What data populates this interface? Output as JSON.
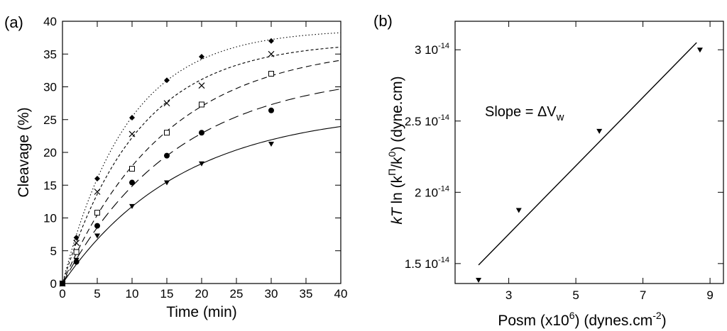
{
  "chart_data": [
    {
      "panel_label": "(a)",
      "type": "scatter",
      "xlabel": "Time (min)",
      "ylabel": "Cleavage (%)",
      "xlim": [
        0,
        40
      ],
      "ylim": [
        0,
        40
      ],
      "xticks": [
        "0",
        "5",
        "10",
        "15",
        "20",
        "25",
        "30",
        "35",
        "40"
      ],
      "yticks": [
        "0",
        "5",
        "10",
        "15",
        "20",
        "25",
        "30",
        "35",
        "40"
      ],
      "grid": false,
      "series": [
        {
          "marker": "diamond-filled",
          "curve_style": "dotted",
          "x": [
            0,
            2,
            5,
            10,
            15,
            20,
            30
          ],
          "y": [
            0,
            7.0,
            16.0,
            25.3,
            31.0,
            34.6,
            37.0
          ],
          "fit": [
            0,
            38.8
          ]
        },
        {
          "marker": "x-cross",
          "curve_style": "short-dash",
          "x": [
            0,
            2,
            5,
            10,
            15,
            20,
            30
          ],
          "y": [
            0,
            6.2,
            14.0,
            22.8,
            27.5,
            30.2,
            35.0
          ],
          "fit": [
            0,
            37.0
          ]
        },
        {
          "marker": "square-open",
          "curve_style": "medium-dash",
          "x": [
            0,
            2,
            5,
            10,
            15,
            20,
            30
          ],
          "y": [
            0,
            4.8,
            10.8,
            17.5,
            23.0,
            27.3,
            32.0
          ],
          "fit": [
            0,
            36.5
          ]
        },
        {
          "marker": "circle-filled",
          "curve_style": "long-dash",
          "x": [
            0,
            2,
            5,
            10,
            15,
            20,
            30
          ],
          "y": [
            0,
            3.3,
            8.8,
            15.4,
            19.5,
            23.0,
            26.4
          ],
          "fit": [
            0,
            32.5
          ]
        },
        {
          "marker": "triangle-down-filled",
          "curve_style": "solid",
          "x": [
            0,
            2,
            5,
            10,
            15,
            20,
            30
          ],
          "y": [
            0,
            3.6,
            7.3,
            11.8,
            15.4,
            18.3,
            21.3
          ],
          "fit": [
            0,
            26.5
          ]
        }
      ]
    },
    {
      "panel_label": "(b)",
      "type": "scatter",
      "xlabel_parts": [
        "Posm (x10",
        "6",
        ") (dynes.cm",
        "-2",
        ")"
      ],
      "ylabel_parts": [
        "kT",
        " ln (k",
        "Π",
        "/k",
        "0",
        ") (dyne.cm)"
      ],
      "xlim": [
        1.4,
        9.4
      ],
      "ylim": [
        1.36e-14,
        3.2e-14
      ],
      "xticks": [
        {
          "value": 3,
          "label": "3"
        },
        {
          "value": 5,
          "label": "5"
        },
        {
          "value": 7,
          "label": "7"
        },
        {
          "value": 9,
          "label": "9"
        }
      ],
      "yticks": [
        {
          "value": 1.5e-14,
          "mantissa": "1.5 10",
          "exponent": "-14"
        },
        {
          "value": 2e-14,
          "mantissa": "2 10",
          "exponent": "-14"
        },
        {
          "value": 2.5e-14,
          "mantissa": "2.5 10",
          "exponent": "-14"
        },
        {
          "value": 3e-14,
          "mantissa": "3 10",
          "exponent": "-14"
        }
      ],
      "grid": false,
      "points": {
        "marker": "triangle-down-filled",
        "x": [
          2.1,
          3.3,
          5.7,
          8.7
        ],
        "y": [
          1.385e-14,
          1.875e-14,
          2.43e-14,
          3e-14
        ]
      },
      "fit_line": {
        "x": [
          2.1,
          8.6
        ],
        "y": [
          1.49e-14,
          3.05e-14
        ]
      },
      "annotation": {
        "text": "Slope = ΔV",
        "subscript": "w"
      }
    }
  ]
}
